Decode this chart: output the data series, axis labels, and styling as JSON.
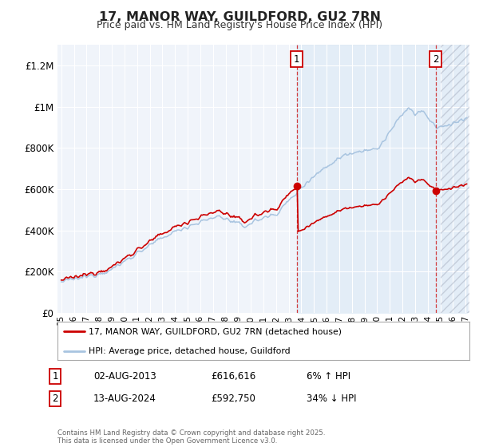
{
  "title": "17, MANOR WAY, GUILDFORD, GU2 7RN",
  "subtitle": "Price paid vs. HM Land Registry's House Price Index (HPI)",
  "hpi_color": "#a8c4e0",
  "hpi_fill_color": "#dae8f5",
  "price_color": "#cc0000",
  "marker1_x": 2013.625,
  "marker1_price": 616616,
  "marker1_label": "1",
  "marker2_x": 2024.625,
  "marker2_price": 592750,
  "marker2_label": "2",
  "yticks": [
    0,
    200000,
    400000,
    600000,
    800000,
    1000000,
    1200000
  ],
  "ytick_labels": [
    "£0",
    "£200K",
    "£400K",
    "£600K",
    "£800K",
    "£1M",
    "£1.2M"
  ],
  "xtick_years": [
    1995,
    1996,
    1997,
    1998,
    1999,
    2000,
    2001,
    2002,
    2003,
    2004,
    2005,
    2006,
    2007,
    2008,
    2009,
    2010,
    2011,
    2012,
    2013,
    2014,
    2015,
    2016,
    2017,
    2018,
    2019,
    2020,
    2021,
    2022,
    2023,
    2024,
    2025,
    2026,
    2027
  ],
  "legend_price_label": "17, MANOR WAY, GUILDFORD, GU2 7RN (detached house)",
  "legend_hpi_label": "HPI: Average price, detached house, Guildford",
  "table_rows": [
    {
      "num": "1",
      "date": "02-AUG-2013",
      "price": "£616,616",
      "change": "6% ↑ HPI"
    },
    {
      "num": "2",
      "date": "13-AUG-2024",
      "price": "£592,750",
      "change": "34% ↓ HPI"
    }
  ],
  "footer": "Contains HM Land Registry data © Crown copyright and database right 2025.\nThis data is licensed under the Open Government Licence v3.0.",
  "background_color": "#ffffff",
  "plot_bg_color": "#f0f4fa",
  "grid_color": "#ffffff",
  "hatch_start": 2025.0,
  "xmin": 1994.7,
  "xmax": 2027.3,
  "ymin": 0,
  "ymax": 1300000,
  "fig_width": 6.0,
  "fig_height": 5.6
}
